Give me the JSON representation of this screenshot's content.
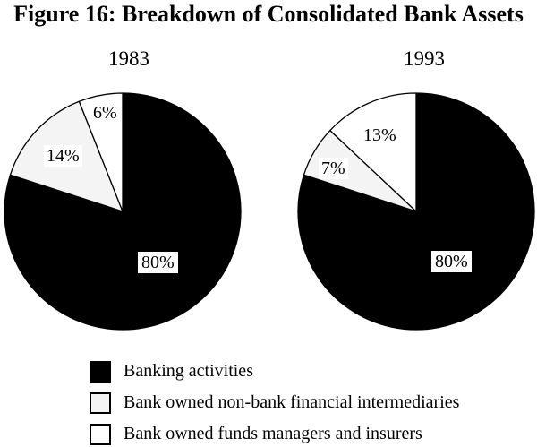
{
  "title": "Figure 16: Breakdown of Consolidated Bank Assets",
  "colors": {
    "banking": "#000000",
    "non_bank_intermediaries": "#f4f4f4",
    "funds_managers_insurers": "#ffffff",
    "text": "#000000",
    "background": "#ffffff"
  },
  "legend": {
    "items": [
      {
        "label": "Banking activities",
        "color": "#000000"
      },
      {
        "label": "Bank owned non-bank financial intermediaries",
        "color": "#f4f4f4"
      },
      {
        "label": "Bank owned funds managers and insurers",
        "color": "#ffffff"
      }
    ]
  },
  "chart_data": [
    {
      "type": "pie",
      "title": "1983",
      "start_angle_deg": 0,
      "direction": "clockwise",
      "slices": [
        {
          "label": "Banking activities",
          "value": 80,
          "pct_label": "80%",
          "color": "#000000"
        },
        {
          "label": "Bank owned non-bank financial intermediaries",
          "value": 14,
          "pct_label": "14%",
          "color": "#f4f4f4"
        },
        {
          "label": "Bank owned funds managers and insurers",
          "value": 6,
          "pct_label": "6%",
          "color": "#ffffff"
        }
      ]
    },
    {
      "type": "pie",
      "title": "1993",
      "start_angle_deg": 0,
      "direction": "clockwise",
      "slices": [
        {
          "label": "Banking activities",
          "value": 80,
          "pct_label": "80%",
          "color": "#000000"
        },
        {
          "label": "Bank owned non-bank financial intermediaries",
          "value": 7,
          "pct_label": "7%",
          "color": "#f4f4f4"
        },
        {
          "label": "Bank owned funds managers and insurers",
          "value": 13,
          "pct_label": "13%",
          "color": "#ffffff"
        }
      ]
    }
  ]
}
